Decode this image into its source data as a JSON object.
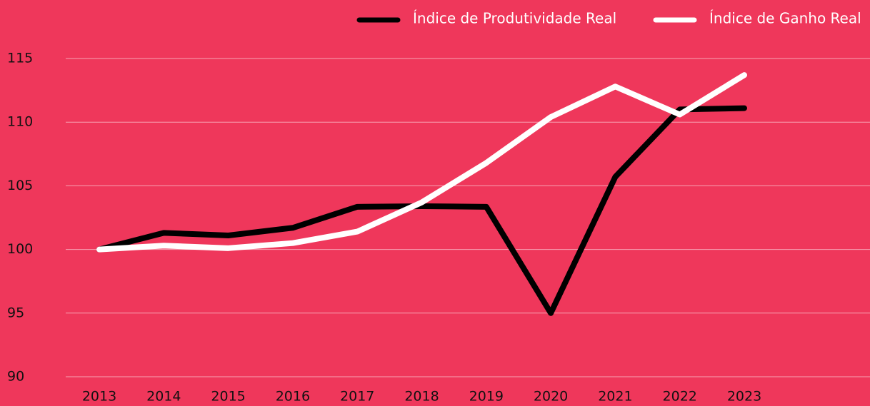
{
  "chart_data": {
    "type": "line",
    "categories": [
      "2013",
      "2014",
      "2015",
      "2016",
      "2017",
      "2018",
      "2019",
      "2020",
      "2021",
      "2022",
      "2023"
    ],
    "series": [
      {
        "name": "Índice de Produtividade Real",
        "color": "#000000",
        "values": [
          100,
          101.3,
          101.1,
          101.7,
          103.35,
          103.4,
          103.35,
          95.0,
          105.7,
          111.0,
          111.1
        ]
      },
      {
        "name": "Índice de Ganho Real",
        "color": "#ffffff",
        "values": [
          100,
          100.3,
          100.1,
          100.5,
          101.4,
          103.7,
          106.8,
          110.4,
          112.8,
          110.6,
          113.7
        ]
      }
    ],
    "ylim": [
      90,
      115
    ],
    "yticks": [
      90,
      95,
      100,
      105,
      110,
      115
    ],
    "grid": true,
    "legend": "top-right",
    "background": "#ef375b"
  }
}
